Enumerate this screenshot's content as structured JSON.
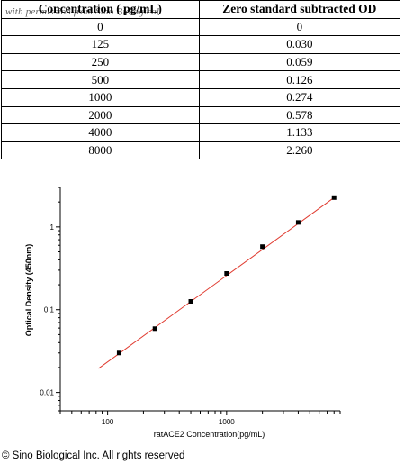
{
  "table": {
    "headers": [
      "Concentration ( pg/mL)",
      "Zero standard subtracted OD"
    ],
    "watermark": "with permission from Sino Biological",
    "rows": [
      [
        "0",
        "0"
      ],
      [
        "125",
        "0.030"
      ],
      [
        "250",
        "0.059"
      ],
      [
        "500",
        "0.126"
      ],
      [
        "1000",
        "0.274"
      ],
      [
        "2000",
        "0.578"
      ],
      [
        "4000",
        "1.133"
      ],
      [
        "8000",
        "2.260"
      ]
    ]
  },
  "chart_data": {
    "type": "scatter",
    "title": "",
    "xlabel": "ratACE2  Concentration(pg/mL)",
    "ylabel": "Optical Density (450nm)",
    "xscale": "log",
    "yscale": "log",
    "xlim": [
      40,
      9000
    ],
    "ylim": [
      0.006,
      3.0
    ],
    "xticks": [
      {
        "value": 100,
        "label": "100"
      },
      {
        "value": 1000,
        "label": "1000"
      }
    ],
    "yticks": [
      {
        "value": 0.01,
        "label": "0.01"
      },
      {
        "value": 0.1,
        "label": "0.1"
      },
      {
        "value": 1,
        "label": "1"
      }
    ],
    "series": [
      {
        "x": [
          125,
          250,
          500,
          1000,
          2000,
          4000,
          8000
        ],
        "y": [
          0.03,
          0.059,
          0.126,
          0.274,
          0.578,
          1.133,
          2.26
        ],
        "marker_color": "#000000"
      }
    ],
    "fit_line": {
      "x": [
        84,
        8000
      ],
      "y": [
        0.0195,
        2.26
      ],
      "color": "#e03a2f"
    },
    "grid": false,
    "legend": "none"
  },
  "footer": {
    "copyright": "© Sino Biological Inc. All rights reserved"
  }
}
